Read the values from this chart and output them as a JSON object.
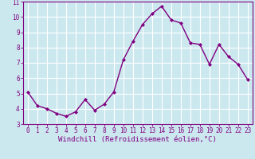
{
  "x": [
    0,
    1,
    2,
    3,
    4,
    5,
    6,
    7,
    8,
    9,
    10,
    11,
    12,
    13,
    14,
    15,
    16,
    17,
    18,
    19,
    20,
    21,
    22,
    23
  ],
  "y": [
    5.1,
    4.2,
    4.0,
    3.7,
    3.5,
    3.8,
    4.6,
    3.9,
    4.3,
    5.1,
    7.2,
    8.4,
    9.5,
    10.2,
    10.7,
    9.8,
    9.6,
    8.3,
    8.2,
    6.9,
    8.2,
    7.4,
    6.9,
    5.9
  ],
  "line_color": "#800080",
  "marker": "D",
  "marker_size": 2.0,
  "bg_color": "#cce8ef",
  "grid_color": "#ffffff",
  "xlabel": "Windchill (Refroidissement éolien,°C)",
  "ylim": [
    3,
    11
  ],
  "xlim_min": -0.5,
  "xlim_max": 23.5,
  "yticks": [
    3,
    4,
    5,
    6,
    7,
    8,
    9,
    10,
    11
  ],
  "xticks": [
    0,
    1,
    2,
    3,
    4,
    5,
    6,
    7,
    8,
    9,
    10,
    11,
    12,
    13,
    14,
    15,
    16,
    17,
    18,
    19,
    20,
    21,
    22,
    23
  ],
  "xlabel_fontsize": 6.5,
  "tick_fontsize": 5.5,
  "axis_color": "#800080",
  "line_width": 1.0,
  "spine_color": "#800080"
}
